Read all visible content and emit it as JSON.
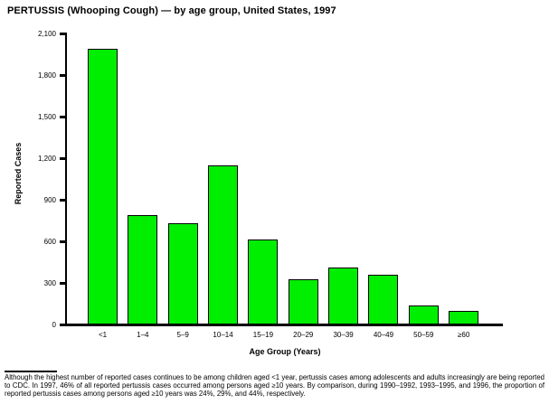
{
  "title": "PERTUSSIS (Whooping Cough) — by age group, United States, 1997",
  "chart_data": {
    "type": "bar",
    "title": "PERTUSSIS (Whooping Cough) — by age group, United States, 1997",
    "categories": [
      "<1",
      "1–4",
      "5–9",
      "10–14",
      "15–19",
      "20–29",
      "30–39",
      "40–49",
      "50–59",
      "≥60"
    ],
    "values": [
      1990,
      790,
      730,
      1145,
      615,
      325,
      410,
      360,
      135,
      100
    ],
    "xlabel": "Age Group (Years)",
    "ylabel": "Reported Cases",
    "ylim": [
      0,
      2100
    ],
    "ytick_values": [
      0,
      300,
      600,
      900,
      1200,
      1500,
      1800,
      2100
    ],
    "ytick_labels": [
      "0",
      "300",
      "600",
      "900",
      "1,200",
      "1,500",
      "1,800",
      "2,100"
    ],
    "grid": false,
    "legend": "none",
    "bar_color": "#00EE00",
    "bar_border_color": "#000000",
    "axis_color": "#000000",
    "background_color": "#FFFFFF"
  },
  "footnote": "Although the highest number of reported cases continues to be among children aged <1 year, pertussis cases among adolescents and adults increasingly are being reported to CDC. In 1997, 46% of all reported pertussis cases occurred among persons aged ≥10 years. By comparison, during 1990–1992, 1993–1995, and 1996, the proportion of reported pertussis cases among persons aged ≥10 years was 24%, 29%, and 44%, respectively."
}
